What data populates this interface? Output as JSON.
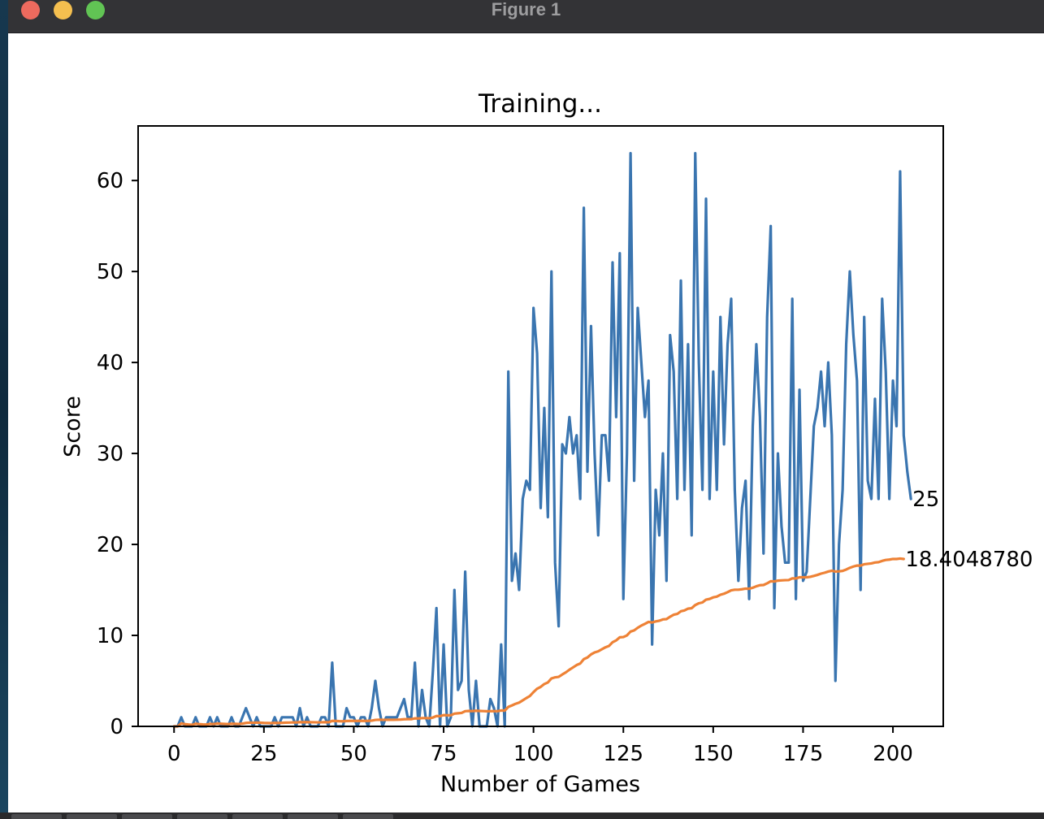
{
  "window": {
    "title": "Figure 1"
  },
  "colors": {
    "score": "#3a75b0",
    "mean": "#ee8236"
  },
  "chart_data": {
    "type": "line",
    "title": "Training...",
    "xlabel": "Number of Games",
    "ylabel": "Score",
    "xlim": [
      -10,
      214
    ],
    "ylim": [
      0,
      66
    ],
    "xticks": [
      "0",
      "25",
      "50",
      "75",
      "100",
      "125",
      "150",
      "175",
      "200"
    ],
    "yticks": [
      "0",
      "10",
      "20",
      "30",
      "40",
      "50",
      "60"
    ],
    "x_start": 0,
    "grid": false,
    "series": [
      {
        "values": [
          0,
          0,
          1,
          0,
          0,
          0,
          1,
          0,
          0,
          0,
          1,
          0,
          1,
          0,
          0,
          0,
          1,
          0,
          0,
          1,
          2,
          1,
          0,
          1,
          0,
          0,
          0,
          0,
          1,
          0,
          1,
          1,
          1,
          1,
          0,
          2,
          0,
          1,
          0,
          0,
          0,
          1,
          1,
          0,
          7,
          0,
          0,
          0,
          2,
          1,
          1,
          0,
          1,
          1,
          0,
          2,
          5,
          2,
          0,
          1,
          1,
          1,
          1,
          2,
          3,
          1,
          1,
          7,
          0,
          4,
          1,
          0,
          6,
          13,
          0,
          9,
          0,
          1,
          15,
          4,
          5,
          17,
          4,
          0,
          5,
          0,
          0,
          0,
          3,
          2,
          0,
          9,
          0,
          39,
          16,
          19,
          15,
          25,
          27,
          26,
          46,
          41,
          24,
          35,
          23,
          50,
          18,
          11,
          31,
          30,
          34,
          30,
          32,
          25,
          57,
          28,
          44,
          30,
          21,
          32,
          32,
          27,
          51,
          34,
          52,
          14,
          30,
          63,
          27,
          46,
          40,
          34,
          38,
          9,
          26,
          21,
          30,
          16,
          43,
          39,
          25,
          49,
          26,
          42,
          21,
          63,
          40,
          26,
          58,
          25,
          39,
          26,
          45,
          31,
          42,
          47,
          26,
          16,
          24,
          27,
          14,
          33,
          42,
          34,
          19,
          45,
          55,
          13,
          30,
          22,
          18,
          18,
          47,
          14,
          37,
          16,
          17,
          25,
          33,
          35,
          39,
          33,
          40,
          32,
          5,
          20,
          26,
          42,
          50,
          43,
          38,
          15,
          45,
          27,
          25,
          36,
          25,
          47,
          39,
          25,
          38,
          33,
          61,
          32,
          28,
          25
        ],
        "end_label": "25"
      },
      {
        "values": [
          0,
          0,
          0.33,
          0.25,
          0.2,
          0.17,
          0.29,
          0.25,
          0.22,
          0.2,
          0.27,
          0.25,
          0.31,
          0.29,
          0.27,
          0.25,
          0.29,
          0.28,
          0.26,
          0.3,
          0.38,
          0.41,
          0.39,
          0.42,
          0.4,
          0.38,
          0.37,
          0.36,
          0.38,
          0.37,
          0.39,
          0.41,
          0.42,
          0.44,
          0.43,
          0.47,
          0.46,
          0.47,
          0.46,
          0.45,
          0.44,
          0.45,
          0.47,
          0.45,
          0.6,
          0.59,
          0.57,
          0.56,
          0.59,
          0.6,
          0.61,
          0.6,
          0.6,
          0.61,
          0.6,
          0.63,
          0.71,
          0.73,
          0.72,
          0.72,
          0.72,
          0.72,
          0.73,
          0.75,
          0.78,
          0.79,
          0.79,
          0.88,
          0.87,
          0.91,
          0.91,
          0.9,
          0.97,
          1.14,
          1.12,
          1.24,
          1.22,
          1.22,
          1.4,
          1.44,
          1.48,
          1.67,
          1.7,
          1.68,
          1.72,
          1.7,
          1.68,
          1.66,
          1.67,
          1.68,
          1.67,
          1.75,
          1.73,
          2.14,
          2.3,
          2.48,
          2.61,
          2.86,
          3.11,
          3.34,
          3.77,
          4.14,
          4.34,
          4.65,
          4.83,
          5.27,
          5.39,
          5.44,
          5.7,
          5.94,
          6.23,
          6.48,
          6.74,
          6.91,
          7.39,
          7.57,
          7.91,
          8.13,
          8.25,
          8.47,
          8.69,
          8.84,
          9.25,
          9.45,
          9.79,
          9.82,
          10,
          10.42,
          10.55,
          10.84,
          11.08,
          11.27,
          11.48,
          11.42,
          11.54,
          11.61,
          11.76,
          11.79,
          12.05,
          12.27,
          12.36,
          12.65,
          12.74,
          12.94,
          12.99,
          13.34,
          13.53,
          13.62,
          13.93,
          14.01,
          14.18,
          14.26,
          14.47,
          14.58,
          14.75,
          14.95,
          15.02,
          15.02,
          15.07,
          15.14,
          15.13,
          15.24,
          15.4,
          15.52,
          15.54,
          15.72,
          15.95,
          15.93,
          16.02,
          16.05,
          16.07,
          16.08,
          16.27,
          16.26,
          16.39,
          16.39,
          16.39,
          16.44,
          16.54,
          16.65,
          16.79,
          16.89,
          17.02,
          17.11,
          17.02,
          17.04,
          17.09,
          17.24,
          17.43,
          17.57,
          17.68,
          17.67,
          17.82,
          17.87,
          17.91,
          18.01,
          18.05,
          18.19,
          18.29,
          18.33,
          18.4,
          18.4,
          18.45,
          18.4
        ],
        "end_label": "18.4048780"
      }
    ]
  }
}
